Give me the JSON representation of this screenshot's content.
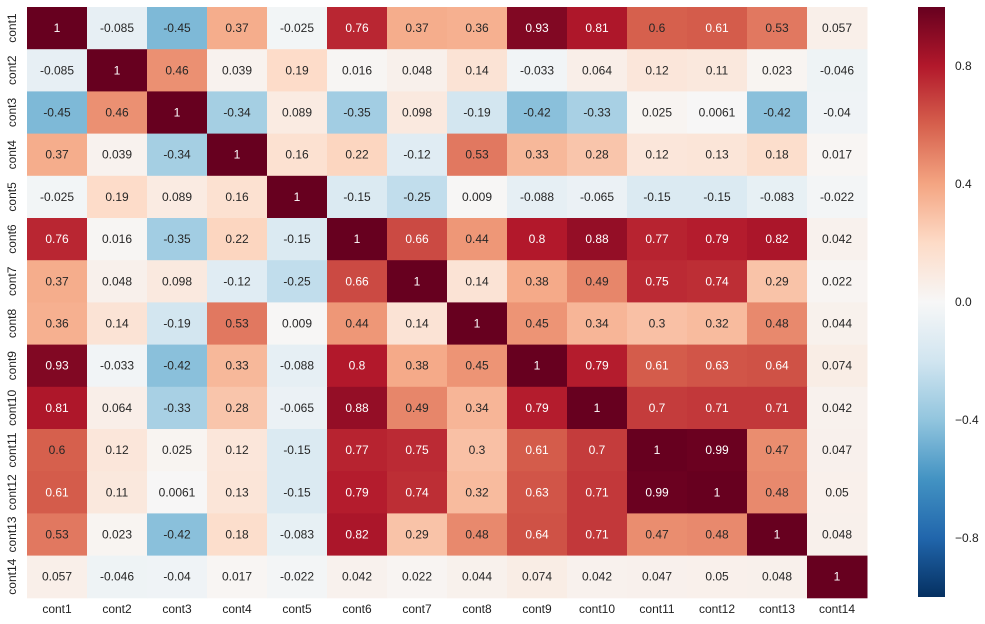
{
  "chart_data": {
    "type": "heatmap",
    "title": "",
    "xlabel": "",
    "ylabel": "",
    "labels": [
      "cont1",
      "cont2",
      "cont3",
      "cont4",
      "cont5",
      "cont6",
      "cont7",
      "cont8",
      "cont9",
      "cont10",
      "cont11",
      "cont12",
      "cont13",
      "cont14"
    ],
    "values": [
      [
        1,
        -0.085,
        -0.45,
        0.37,
        -0.025,
        0.76,
        0.37,
        0.36,
        0.93,
        0.81,
        0.6,
        0.61,
        0.53,
        0.057
      ],
      [
        -0.085,
        1,
        0.46,
        0.039,
        0.19,
        0.016,
        0.048,
        0.14,
        -0.033,
        0.064,
        0.12,
        0.11,
        0.023,
        -0.046
      ],
      [
        -0.45,
        0.46,
        1,
        -0.34,
        0.089,
        -0.35,
        0.098,
        -0.19,
        -0.42,
        -0.33,
        0.025,
        0.0061,
        -0.42,
        -0.04
      ],
      [
        0.37,
        0.039,
        -0.34,
        1,
        0.16,
        0.22,
        -0.12,
        0.53,
        0.33,
        0.28,
        0.12,
        0.13,
        0.18,
        0.017
      ],
      [
        -0.025,
        0.19,
        0.089,
        0.16,
        1,
        -0.15,
        -0.25,
        0.009,
        -0.088,
        -0.065,
        -0.15,
        -0.15,
        -0.083,
        -0.022
      ],
      [
        0.76,
        0.016,
        -0.35,
        0.22,
        -0.15,
        1,
        0.66,
        0.44,
        0.8,
        0.88,
        0.77,
        0.79,
        0.82,
        0.042
      ],
      [
        0.37,
        0.048,
        0.098,
        -0.12,
        -0.25,
        0.66,
        1,
        0.14,
        0.38,
        0.49,
        0.75,
        0.74,
        0.29,
        0.022
      ],
      [
        0.36,
        0.14,
        -0.19,
        0.53,
        0.009,
        0.44,
        0.14,
        1,
        0.45,
        0.34,
        0.3,
        0.32,
        0.48,
        0.044
      ],
      [
        0.93,
        -0.033,
        -0.42,
        0.33,
        -0.088,
        0.8,
        0.38,
        0.45,
        1,
        0.79,
        0.61,
        0.63,
        0.64,
        0.074
      ],
      [
        0.81,
        0.064,
        -0.33,
        0.28,
        -0.065,
        0.88,
        0.49,
        0.34,
        0.79,
        1,
        0.7,
        0.71,
        0.71,
        0.042
      ],
      [
        0.6,
        0.12,
        0.025,
        0.12,
        -0.15,
        0.77,
        0.75,
        0.3,
        0.61,
        0.7,
        1,
        0.99,
        0.47,
        0.047
      ],
      [
        0.61,
        0.11,
        0.0061,
        0.13,
        -0.15,
        0.79,
        0.74,
        0.32,
        0.63,
        0.71,
        0.99,
        1,
        0.48,
        0.05
      ],
      [
        0.53,
        0.023,
        -0.42,
        0.18,
        -0.083,
        0.82,
        0.29,
        0.48,
        0.64,
        0.71,
        0.47,
        0.48,
        1,
        0.048
      ],
      [
        0.057,
        -0.046,
        -0.04,
        0.017,
        -0.022,
        0.042,
        0.022,
        0.044,
        0.074,
        0.042,
        0.047,
        0.05,
        0.048,
        1
      ]
    ],
    "vmin": -1,
    "vmax": 1,
    "colormap": "RdBu_r",
    "colorbar_ticks": [
      {
        "value": 0.8,
        "label": "0.8"
      },
      {
        "value": 0.4,
        "label": "0.4"
      },
      {
        "value": 0.0,
        "label": "0.0"
      },
      {
        "value": -0.4,
        "label": "−0.4"
      },
      {
        "value": -0.8,
        "label": "−0.8"
      }
    ],
    "colors": [
      "#053061",
      "#2166ac",
      "#4393c3",
      "#92c5de",
      "#d1e5f0",
      "#f7f7f7",
      "#fddbc7",
      "#f4a582",
      "#d6604d",
      "#b2182b",
      "#67001f"
    ]
  }
}
